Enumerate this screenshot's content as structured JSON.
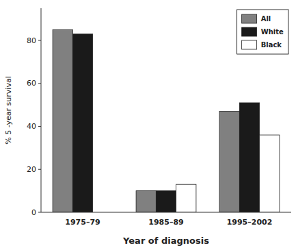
{
  "chart_data": {
    "type": "bar",
    "categories": [
      "1975–79",
      "1985–89",
      "1995–2002"
    ],
    "series": [
      {
        "name": "All",
        "color": "#808080",
        "values": [
          85,
          10,
          47
        ]
      },
      {
        "name": "White",
        "color": "#1a1a1a",
        "values": [
          83,
          10,
          51
        ]
      },
      {
        "name": "Black",
        "color": "#ffffff",
        "values": [
          null,
          13,
          36
        ]
      }
    ],
    "xlabel": "Year of diagnosis",
    "ylabel": "% 5 -year survival",
    "ylim": [
      0,
      95
    ],
    "yticks": [
      0,
      20,
      40,
      60,
      80
    ],
    "grid": false,
    "legend": "upper-right"
  }
}
